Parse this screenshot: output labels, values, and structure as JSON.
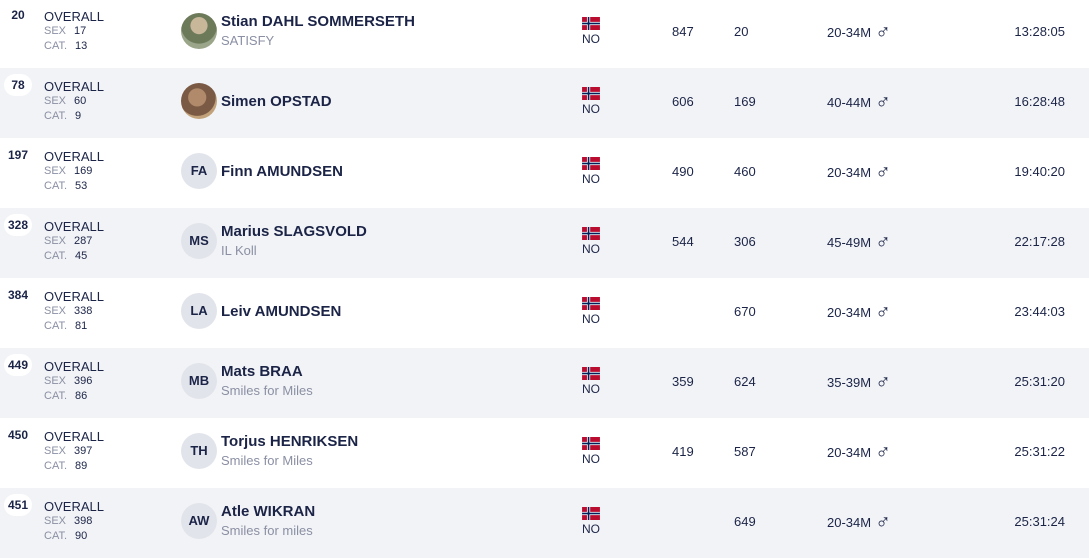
{
  "labels": {
    "overall": "OVERALL",
    "sex": "SEX",
    "cat": "CAT."
  },
  "rows": [
    {
      "rank": "20",
      "sex_rank": "17",
      "cat_rank": "13",
      "name": "Stian DAHL SOMMERSETH",
      "club": "SATISFY",
      "country": "NO",
      "col1": "847",
      "col2": "20",
      "category": "20-34M",
      "gender": "♂",
      "time": "13:28:05"
    },
    {
      "rank": "78",
      "sex_rank": "60",
      "cat_rank": "9",
      "name": "Simen OPSTAD",
      "country": "NO",
      "col1": "606",
      "col2": "169",
      "category": "40-44M",
      "gender": "♂",
      "time": "16:28:48"
    },
    {
      "rank": "197",
      "sex_rank": "169",
      "cat_rank": "53",
      "initials": "FA",
      "name": "Finn AMUNDSEN",
      "country": "NO",
      "col1": "490",
      "col2": "460",
      "category": "20-34M",
      "gender": "♂",
      "time": "19:40:20"
    },
    {
      "rank": "328",
      "sex_rank": "287",
      "cat_rank": "45",
      "initials": "MS",
      "name": "Marius SLAGSVOLD",
      "club": "IL Koll",
      "country": "NO",
      "col1": "544",
      "col2": "306",
      "category": "45-49M",
      "gender": "♂",
      "time": "22:17:28"
    },
    {
      "rank": "384",
      "sex_rank": "338",
      "cat_rank": "81",
      "initials": "LA",
      "name": "Leiv AMUNDSEN",
      "country": "NO",
      "col2": "670",
      "category": "20-34M",
      "gender": "♂",
      "time": "23:44:03"
    },
    {
      "rank": "449",
      "sex_rank": "396",
      "cat_rank": "86",
      "initials": "MB",
      "name": "Mats BRAA",
      "club": "Smiles for Miles",
      "country": "NO",
      "col1": "359",
      "col2": "624",
      "category": "35-39M",
      "gender": "♂",
      "time": "25:31:20"
    },
    {
      "rank": "450",
      "sex_rank": "397",
      "cat_rank": "89",
      "initials": "TH",
      "name": "Torjus HENRIKSEN",
      "club": "Smiles for Miles",
      "country": "NO",
      "col1": "419",
      "col2": "587",
      "category": "20-34M",
      "gender": "♂",
      "time": "25:31:22"
    },
    {
      "rank": "451",
      "sex_rank": "398",
      "cat_rank": "90",
      "initials": "AW",
      "name": "Atle WIKRAN",
      "club": "Smiles for miles",
      "country": "NO",
      "col2": "649",
      "category": "20-34M",
      "gender": "♂",
      "time": "25:31:24"
    }
  ]
}
